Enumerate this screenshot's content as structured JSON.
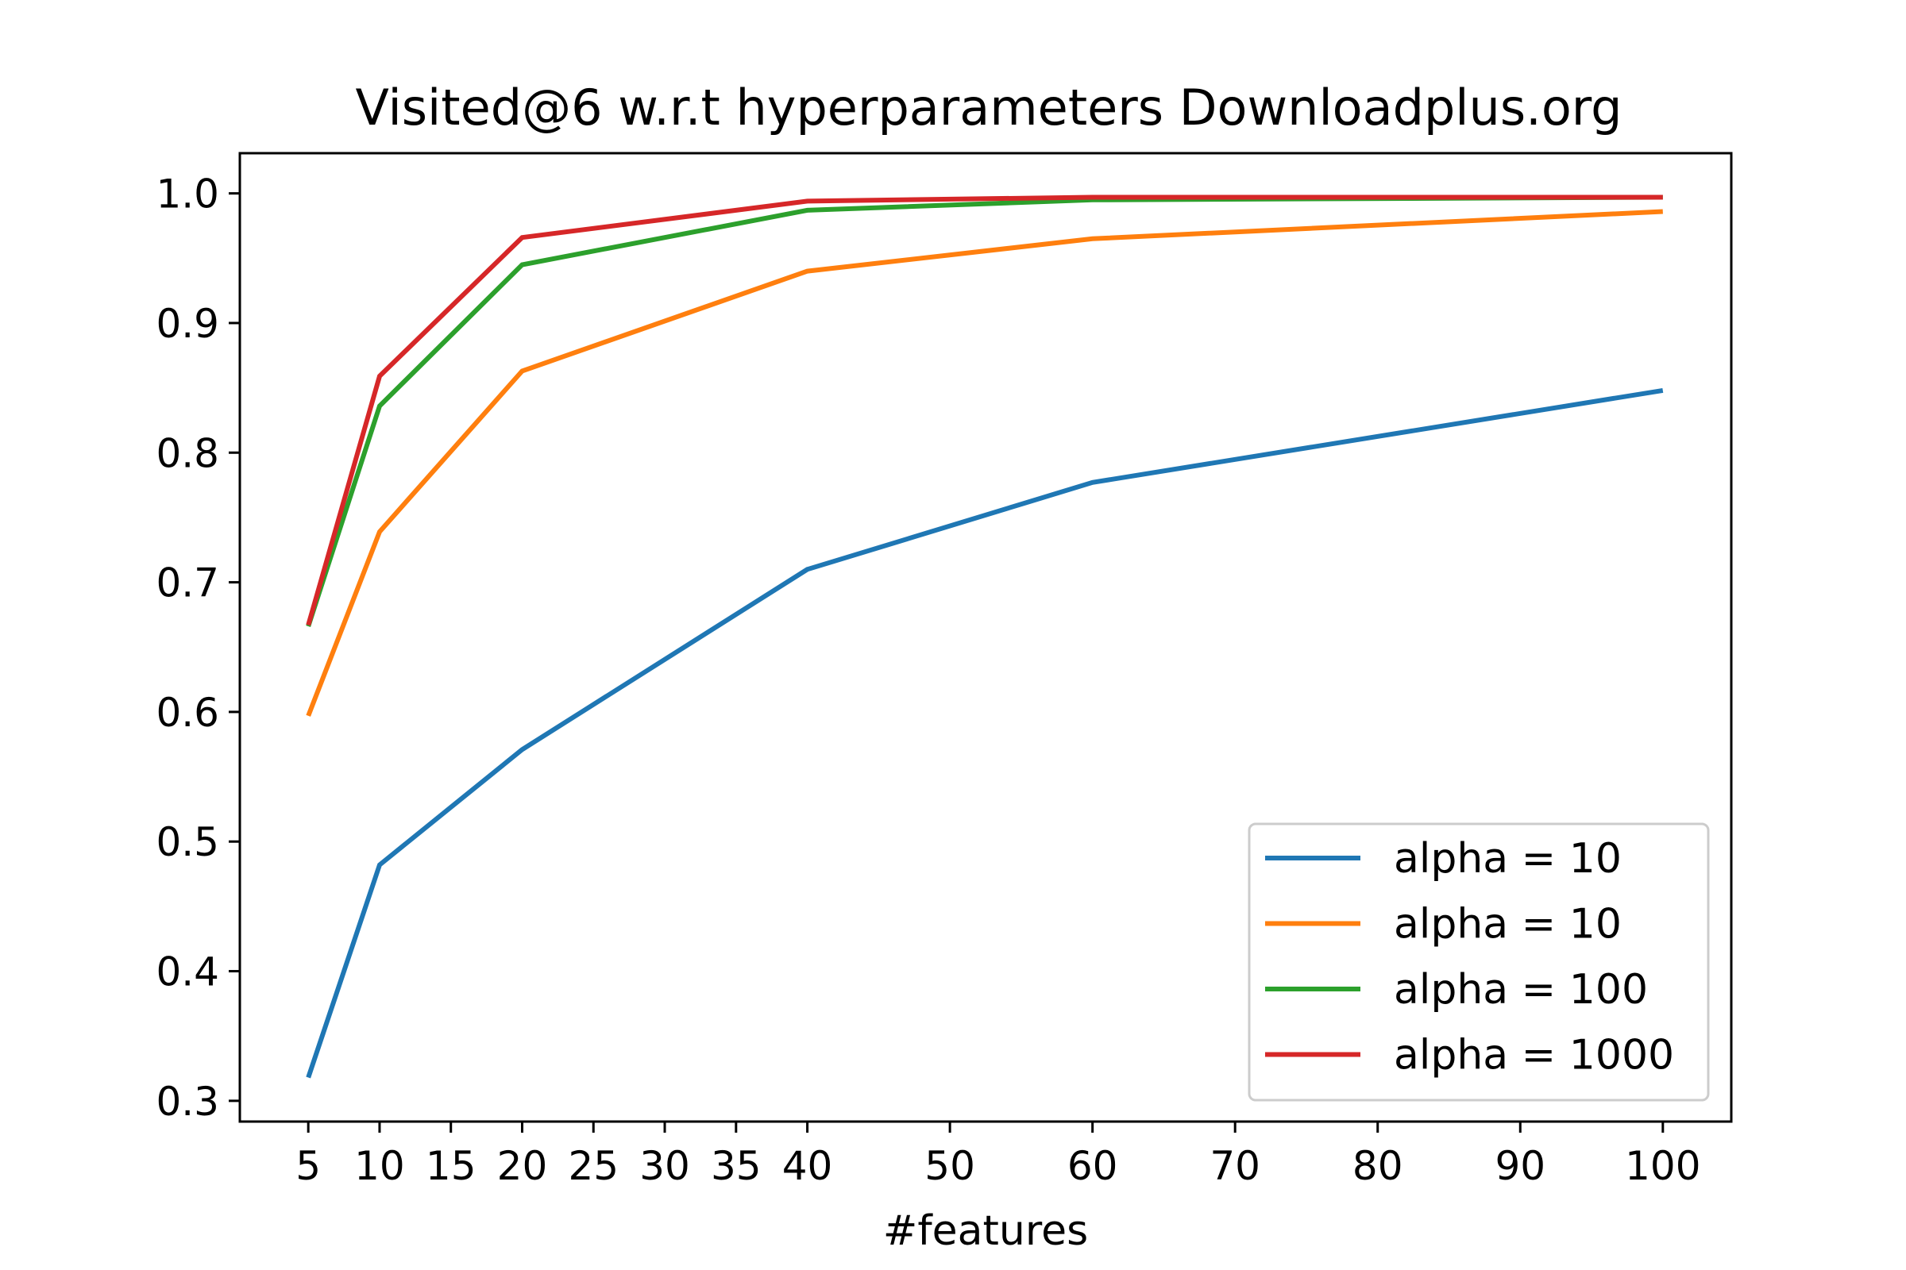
{
  "chart_data": {
    "type": "line",
    "title": "Visited@6 w.r.t hyperparameters Downloadplus.org",
    "xlabel": "#features",
    "ylabel": "",
    "x": [
      5,
      10,
      20,
      40,
      60,
      100
    ],
    "xticks": [
      5,
      10,
      15,
      20,
      25,
      30,
      35,
      40,
      50,
      60,
      70,
      80,
      90,
      100
    ],
    "yticks": [
      0.3,
      0.4,
      0.5,
      0.6,
      0.7,
      0.8,
      0.9,
      1.0
    ],
    "xlim": [
      0.2,
      104.8
    ],
    "ylim": [
      0.284,
      1.031
    ],
    "grid": false,
    "legend_position": "lower-right",
    "series": [
      {
        "name": "alpha = 10",
        "color": "#1f77b4",
        "values": [
          0.318,
          0.482,
          0.571,
          0.71,
          0.777,
          0.848
        ]
      },
      {
        "name": "alpha = 10",
        "color": "#ff7f0e",
        "values": [
          0.597,
          0.739,
          0.863,
          0.94,
          0.965,
          0.986
        ]
      },
      {
        "name": "alpha = 100",
        "color": "#2ca02c",
        "values": [
          0.666,
          0.836,
          0.945,
          0.987,
          0.995,
          0.997
        ]
      },
      {
        "name": "alpha = 1000",
        "color": "#d62728",
        "values": [
          0.667,
          0.859,
          0.966,
          0.994,
          0.997,
          0.997
        ]
      }
    ]
  }
}
